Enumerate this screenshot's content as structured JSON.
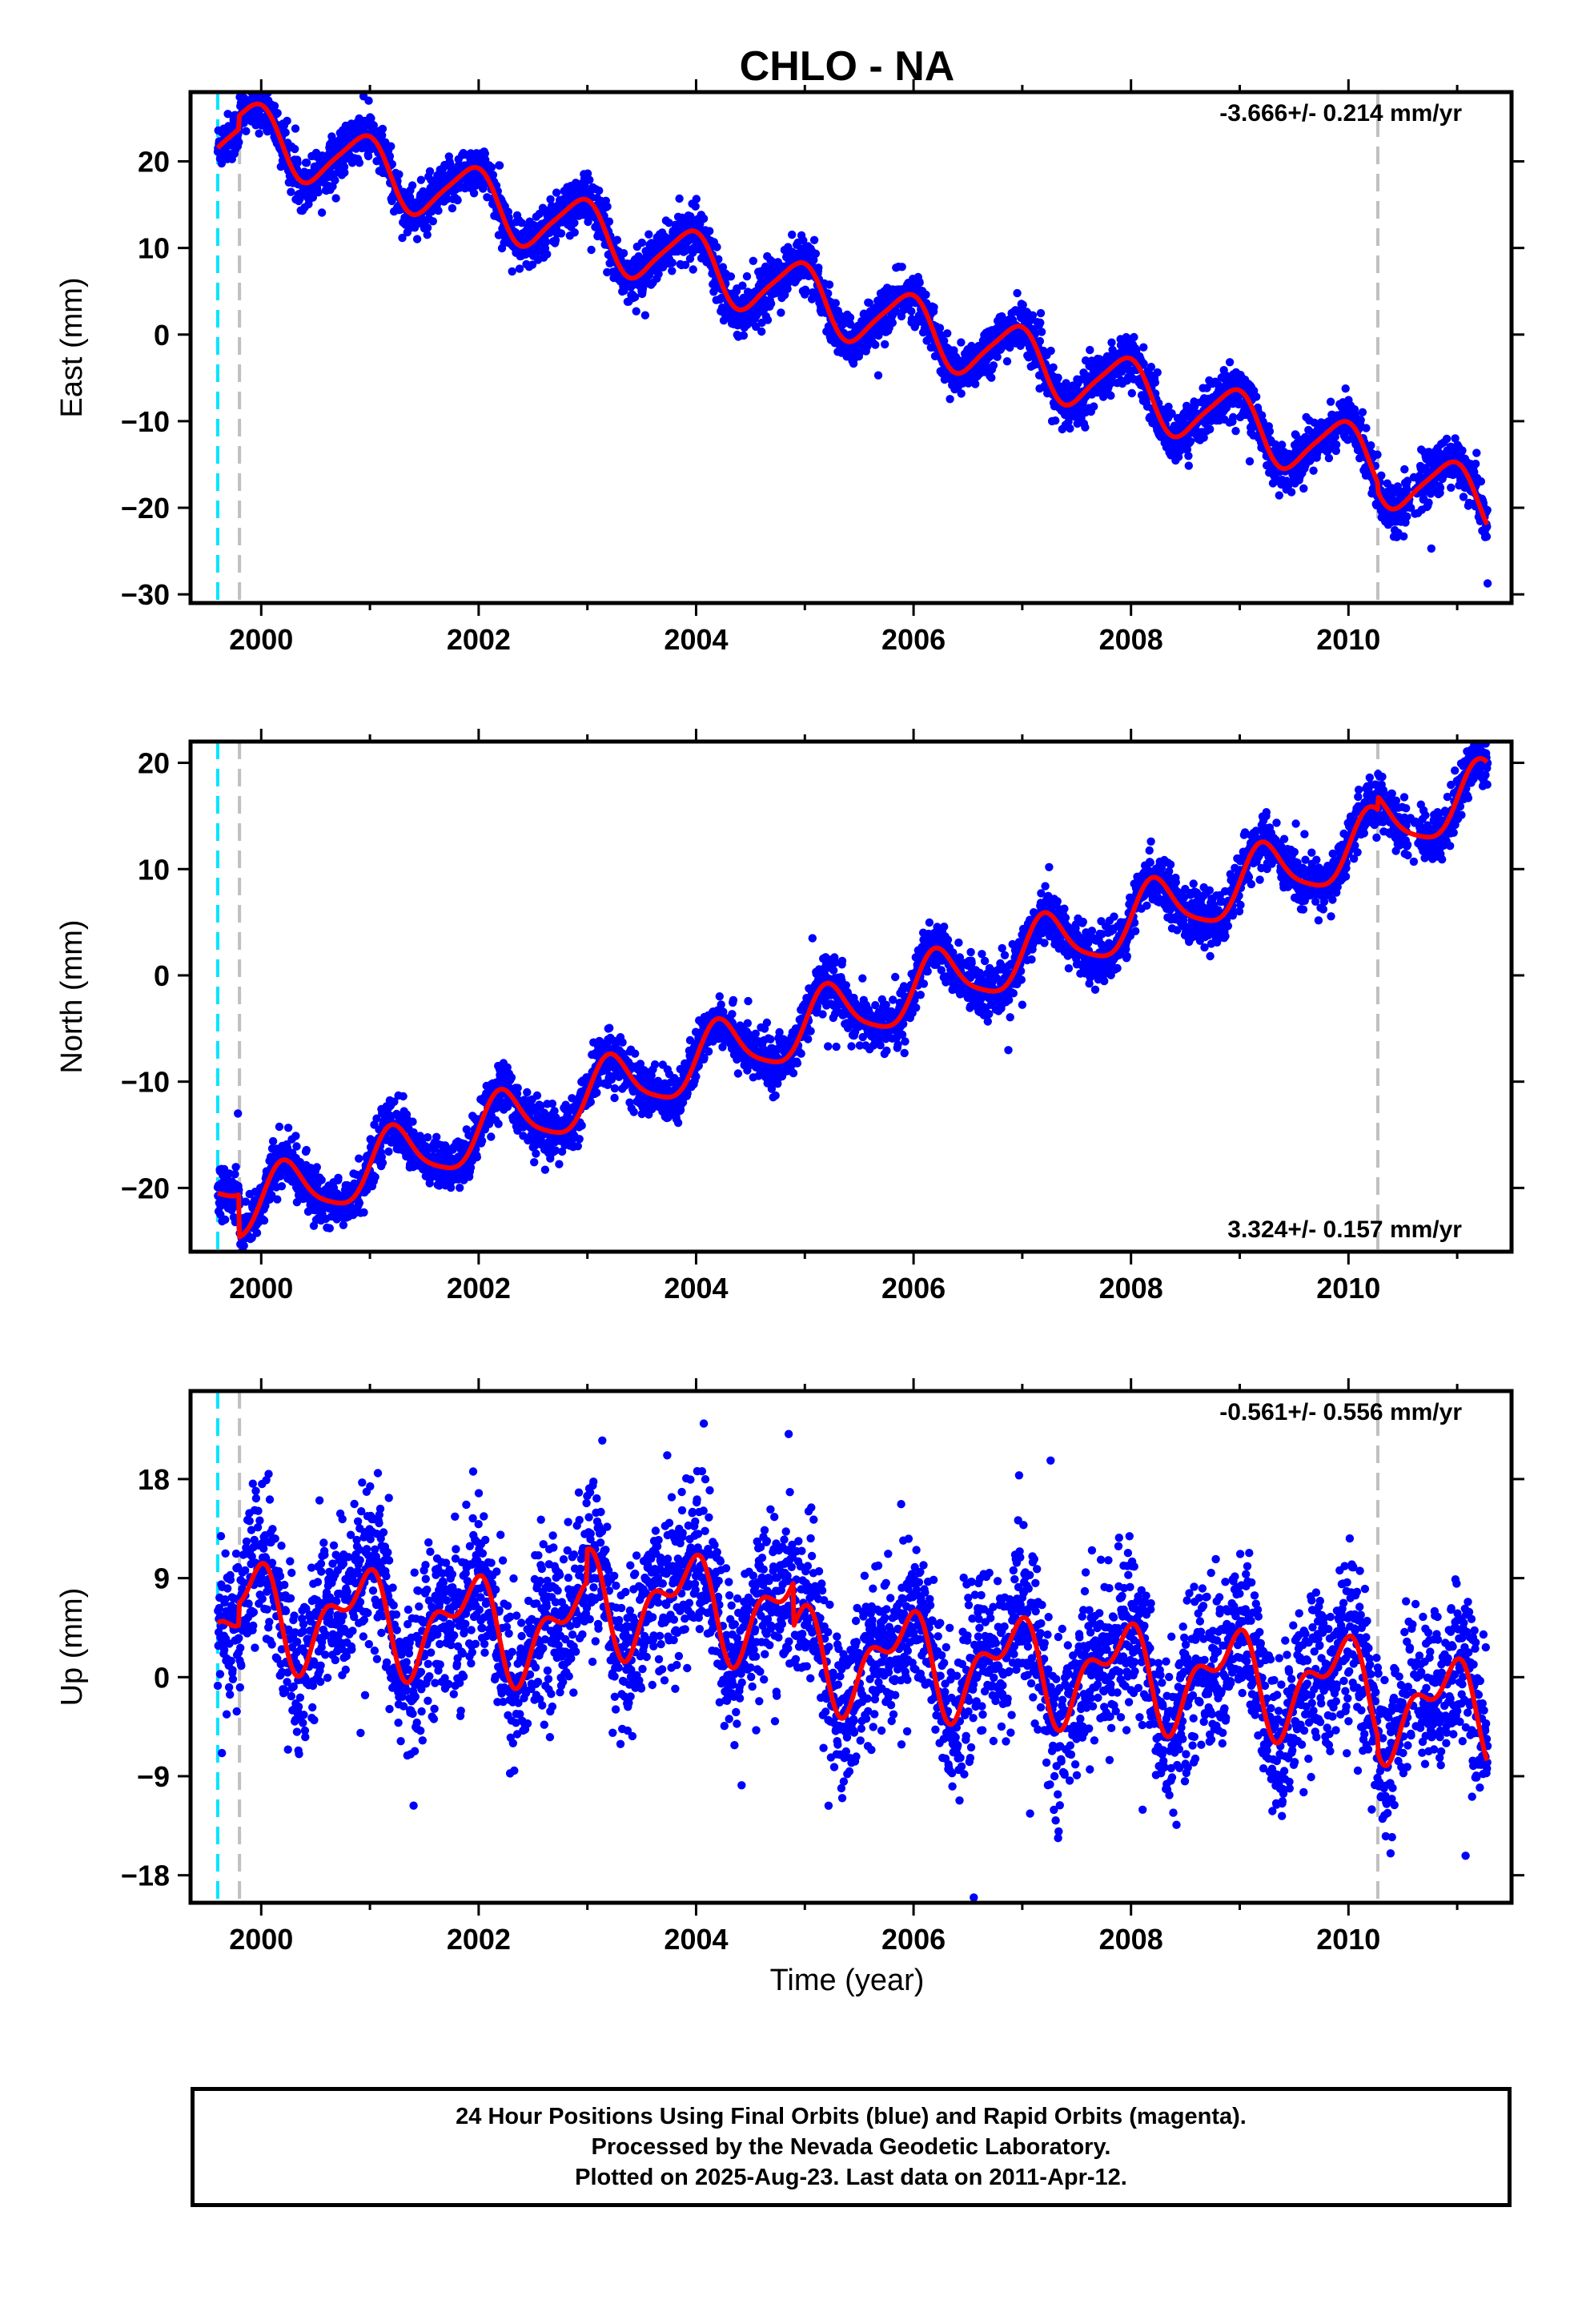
{
  "title": "CHLO - NA",
  "xlabel": "Time (year)",
  "caption": {
    "line1": "24 Hour Positions Using Final Orbits (blue) and Rapid Orbits (magenta).",
    "line2": "Processed by the Nevada Geodetic Laboratory.",
    "line3": "Plotted on 2025-Aug-23. Last data on 2011-Apr-12."
  },
  "colors": {
    "final_orbits": "#0000ff",
    "model_fit": "#ff0000",
    "cyan_marker": "#00e5ff",
    "gray_marker": "#c0c0c0"
  },
  "chart_data": [
    {
      "type": "scatter",
      "name": "east",
      "ylabel": "East (mm)",
      "rate": "-3.666+/- 0.214 mm/yr",
      "rate_position": "top-right",
      "xlim": [
        1999.35,
        2011.5
      ],
      "ylim": [
        -31,
        28
      ],
      "xticks": [
        2000,
        2002,
        2004,
        2006,
        2008,
        2010
      ],
      "yticks": [
        20,
        10,
        0,
        -10,
        -20,
        -30
      ],
      "ytick_labels": [
        "20",
        "10",
        "0",
        "−10",
        "−20",
        "−30"
      ],
      "vlines": [
        {
          "x": 1999.6,
          "color": "cyan"
        },
        {
          "x": 1999.8,
          "color": "gray"
        },
        {
          "x": 2010.27,
          "color": "gray"
        }
      ],
      "model": {
        "t0": 2005.0,
        "intercept": 3.0,
        "rate": -3.666,
        "annual_sin": -1.4,
        "annual_cos": 3.3,
        "semi_sin": 0.5,
        "semi_cos": 0.4,
        "offsets": [
          {
            "t": 1999.8,
            "dy": 1.5
          },
          {
            "t": 2010.27,
            "dy": -1.0
          }
        ],
        "scatter_sd": 1.4
      },
      "x_range": [
        1999.6,
        2011.28
      ]
    },
    {
      "type": "scatter",
      "name": "north",
      "ylabel": "North (mm)",
      "rate": "3.324+/- 0.157 mm/yr",
      "rate_position": "bottom-right",
      "xlim": [
        1999.35,
        2011.5
      ],
      "ylim": [
        -26,
        22
      ],
      "xticks": [
        2000,
        2002,
        2004,
        2006,
        2008,
        2010
      ],
      "yticks": [
        20,
        10,
        0,
        -10,
        -20
      ],
      "ytick_labels": [
        "20",
        "10",
        "0",
        "−10",
        "−20"
      ],
      "vlines": [
        {
          "x": 1999.6,
          "color": "cyan"
        },
        {
          "x": 1999.8,
          "color": "gray"
        },
        {
          "x": 2010.27,
          "color": "gray"
        }
      ],
      "model": {
        "t0": 2005.0,
        "intercept": -0.8,
        "rate": 3.324,
        "annual_sin": 2.8,
        "annual_cos": 0.6,
        "semi_sin": 0.5,
        "semi_cos": -0.3,
        "offsets": [
          {
            "t": 1999.8,
            "dy": -4.0
          },
          {
            "t": 2010.27,
            "dy": 1.2
          }
        ],
        "scatter_sd": 1.2
      },
      "x_range": [
        1999.6,
        2011.28
      ]
    },
    {
      "type": "scatter",
      "name": "up",
      "ylabel": "Up (mm)",
      "rate": "-0.561+/- 0.556 mm/yr",
      "rate_position": "top-right",
      "xlim": [
        1999.35,
        2011.5
      ],
      "ylim": [
        -20.5,
        26
      ],
      "xticks": [
        2000,
        2002,
        2004,
        2006,
        2008,
        2010
      ],
      "yticks": [
        18,
        9,
        0,
        -9,
        -18
      ],
      "ytick_labels": [
        "18",
        "9",
        "0",
        "−9",
        "−18"
      ],
      "vlines": [
        {
          "x": 1999.6,
          "color": "cyan"
        },
        {
          "x": 1999.8,
          "color": "gray"
        },
        {
          "x": 2010.27,
          "color": "gray"
        }
      ],
      "model": {
        "t0": 2005.0,
        "intercept": 1.0,
        "rate": -0.561,
        "annual_sin": -2.2,
        "annual_cos": 3.0,
        "semi_sin": 1.6,
        "semi_cos": 1.5,
        "offsets": [
          {
            "t": 1999.8,
            "dy": 2.0
          },
          {
            "t": 2003.0,
            "dy": 3.0
          },
          {
            "t": 2004.9,
            "dy": -4.0
          },
          {
            "t": 2010.27,
            "dy": -1.5
          }
        ],
        "scatter_sd": 3.6
      },
      "x_range": [
        1999.6,
        2011.28
      ]
    }
  ]
}
